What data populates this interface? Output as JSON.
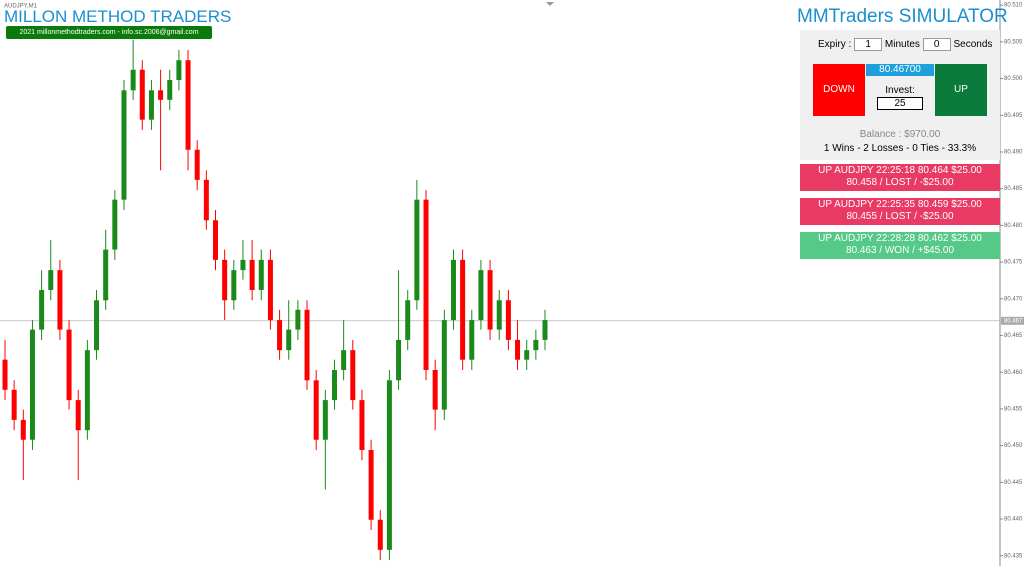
{
  "chart_data": {
    "type": "candlestick",
    "symbol": "AUDJPY,M1",
    "open": [
      80.4617,
      80.4576,
      80.4535,
      80.4508,
      80.4658,
      80.4712,
      80.4739,
      80.4658,
      80.4562,
      80.4521,
      80.463,
      80.4698,
      80.4767,
      80.4835,
      80.4984,
      80.5012,
      80.4944,
      80.4984,
      80.4971,
      80.4998,
      80.5025,
      80.4903,
      80.4862,
      80.4807,
      80.4753,
      80.4698,
      80.4739,
      80.4753,
      80.4712,
      80.4753,
      80.4671,
      80.463,
      80.4658,
      80.4685,
      80.4589,
      80.4508,
      80.4562,
      80.4603,
      80.463,
      80.4562,
      80.4494,
      80.4399,
      80.4358,
      80.4589,
      80.4644,
      80.4698,
      80.4835,
      80.4603,
      80.4549,
      80.4671,
      80.4753,
      80.4617,
      80.4671,
      80.4739,
      80.4658,
      80.4698,
      80.4644,
      80.4617,
      80.463,
      80.4644
    ],
    "high": [
      80.4644,
      80.4589,
      80.4549,
      80.4671,
      80.4739,
      80.478,
      80.4753,
      80.4671,
      80.4576,
      80.4644,
      80.4712,
      80.4794,
      80.4848,
      80.4998,
      80.5053,
      80.5025,
      80.4998,
      80.5012,
      80.5012,
      80.5039,
      80.5039,
      80.4916,
      80.4875,
      80.4821,
      80.4767,
      80.4753,
      80.478,
      80.478,
      80.4767,
      80.4767,
      80.4685,
      80.4698,
      80.4698,
      80.4698,
      80.4603,
      80.4576,
      80.4617,
      80.4671,
      80.4644,
      80.4576,
      80.4508,
      80.4412,
      80.4603,
      80.4739,
      80.4712,
      80.4862,
      80.4848,
      80.4617,
      80.4685,
      80.4767,
      80.4767,
      80.4685,
      80.4753,
      80.4753,
      80.4712,
      80.4712,
      80.4671,
      80.4644,
      80.4658,
      80.4685
    ],
    "low": [
      80.4562,
      80.4521,
      80.4453,
      80.4494,
      80.4644,
      80.4698,
      80.4644,
      80.4549,
      80.4453,
      80.4508,
      80.4617,
      80.4685,
      80.4753,
      80.4821,
      80.4971,
      80.493,
      80.493,
      80.4875,
      80.4957,
      80.4984,
      80.4875,
      80.4848,
      80.4794,
      80.4739,
      80.4671,
      80.4685,
      80.4726,
      80.4698,
      80.4698,
      80.4658,
      80.4617,
      80.4617,
      80.4644,
      80.4576,
      80.4494,
      80.444,
      80.4549,
      80.4589,
      80.4549,
      80.448,
      80.4385,
      80.4344,
      80.4344,
      80.4576,
      80.463,
      80.4685,
      80.4589,
      80.4521,
      80.4535,
      80.4658,
      80.4603,
      80.4603,
      80.4658,
      80.4644,
      80.4644,
      80.463,
      80.4603,
      80.4603,
      80.4617,
      80.463
    ],
    "close": [
      80.4576,
      80.4535,
      80.4508,
      80.4658,
      80.4712,
      80.4739,
      80.4658,
      80.4562,
      80.4521,
      80.463,
      80.4698,
      80.4767,
      80.4835,
      80.4984,
      80.5012,
      80.4944,
      80.4984,
      80.4971,
      80.4998,
      80.5025,
      80.4903,
      80.4862,
      80.4807,
      80.4753,
      80.4698,
      80.4739,
      80.4753,
      80.4712,
      80.4753,
      80.4671,
      80.463,
      80.4658,
      80.4685,
      80.4589,
      80.4508,
      80.4562,
      80.4603,
      80.463,
      80.4562,
      80.4494,
      80.4399,
      80.4358,
      80.4589,
      80.4644,
      80.4698,
      80.4835,
      80.4603,
      80.4549,
      80.4671,
      80.4753,
      80.4617,
      80.4671,
      80.4739,
      80.4658,
      80.4698,
      80.4644,
      80.4617,
      80.463,
      80.4644,
      80.4671
    ],
    "up_color": "#1a8a1a",
    "down_color": "#ff0000",
    "current_price": 80.467,
    "ylim": [
      80.4336,
      80.5107
    ],
    "yticks": [
      {
        "value": 80.51,
        "label": "80.510"
      },
      {
        "value": 80.505,
        "label": "80.505"
      },
      {
        "value": 80.5,
        "label": "80.500"
      },
      {
        "value": 80.495,
        "label": "80.495"
      },
      {
        "value": 80.49,
        "label": "80.490"
      },
      {
        "value": 80.485,
        "label": "80.485"
      },
      {
        "value": 80.48,
        "label": "80.480"
      },
      {
        "value": 80.475,
        "label": "80.475"
      },
      {
        "value": 80.47,
        "label": "80.470"
      },
      {
        "value": 80.465,
        "label": "80.465"
      },
      {
        "value": 80.46,
        "label": "80.460"
      },
      {
        "value": 80.455,
        "label": "80.455"
      },
      {
        "value": 80.45,
        "label": "80.450"
      },
      {
        "value": 80.445,
        "label": "80.445"
      },
      {
        "value": 80.44,
        "label": "80.440"
      },
      {
        "value": 80.435,
        "label": "80.435"
      }
    ]
  },
  "header": {
    "title": "MILLON METHOD TRADERS",
    "contact": "2021 millonmethodtraders.com - info.sc.2006@gmail.com"
  },
  "panel": {
    "title": "MMTraders SIMULATOR",
    "expiry_label": "Expiry :",
    "minutes": 1,
    "minutes_label": "Minutes",
    "seconds": 0,
    "seconds_label": "Seconds",
    "down": "DOWN",
    "price": "80.46700",
    "invest_label": "Invest:",
    "invest": 25,
    "up": "UP",
    "balance": "Balance : $970.00",
    "stats": "1 Wins - 2 Losses - 0 Ties - 33.3%",
    "trades": [
      {
        "line1": "UP AUDJPY 22:25:18 80.464 $25.00",
        "line2": "80.458 / LOST / -$25.00",
        "status": "lost"
      },
      {
        "line1": "UP AUDJPY 22:25:35 80.459 $25.00",
        "line2": "80.455 / LOST / -$25.00",
        "status": "lost"
      },
      {
        "line1": "UP AUDJPY 22:28:28 80.462 $25.00",
        "line2": "80.463 / WON / +$45.00",
        "status": "won"
      }
    ]
  }
}
